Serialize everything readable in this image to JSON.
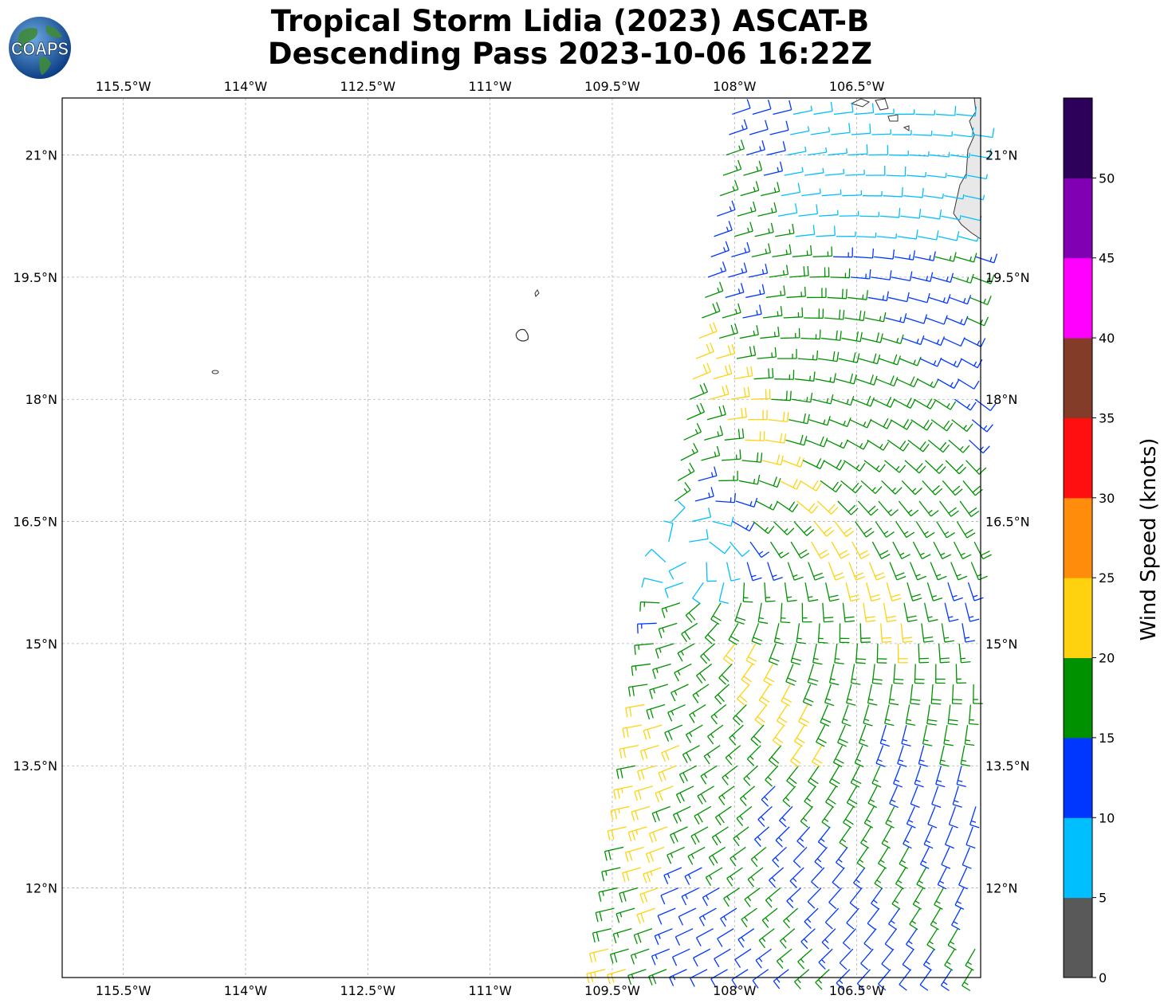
{
  "title": {
    "line1": "Tropical Storm Lidia (2023) ASCAT-B",
    "line2": "Descending Pass 2023-10-06 16:22Z"
  },
  "logo": {
    "text": "COAPS"
  },
  "map": {
    "lon_range": [
      -116.25,
      -104.98
    ],
    "lat_range": [
      10.9,
      21.7
    ],
    "lon_ticks": [
      {
        "value": -115.5,
        "label": "115.5°W"
      },
      {
        "value": -114.0,
        "label": "114°W"
      },
      {
        "value": -112.5,
        "label": "112.5°W"
      },
      {
        "value": -111.0,
        "label": "111°W"
      },
      {
        "value": -109.5,
        "label": "109.5°W"
      },
      {
        "value": -108.0,
        "label": "108°W"
      },
      {
        "value": -106.5,
        "label": "106.5°W"
      }
    ],
    "lat_ticks": [
      {
        "value": 21.0,
        "label": "21°N"
      },
      {
        "value": 19.5,
        "label": "19.5°N"
      },
      {
        "value": 18.0,
        "label": "18°N"
      },
      {
        "value": 16.5,
        "label": "16.5°N"
      },
      {
        "value": 15.0,
        "label": "15°N"
      },
      {
        "value": 13.5,
        "label": "13.5°N"
      },
      {
        "value": 12.0,
        "label": "12°N"
      }
    ],
    "gridlines": true,
    "land_color": "#e8e8e8",
    "coast_color": "#333333",
    "storm_center": {
      "lon": -108.6,
      "lat": 16.1
    },
    "swath": {
      "lat_min": 10.9,
      "lat_max": 21.7,
      "west_edge_lon_at_lat_min": -109.6,
      "west_edge_lon_at_lat_max": -108.0
    }
  },
  "colorbar": {
    "label": "Wind Speed (knots)",
    "ticks": [
      "0",
      "5",
      "10",
      "15",
      "20",
      "25",
      "30",
      "35",
      "40",
      "45",
      "50"
    ],
    "colors": [
      "#595959",
      "#00bfff",
      "#0037ff",
      "#009100",
      "#ffd20f",
      "#ff8c0a",
      "#ff0f0f",
      "#823c28",
      "#ff00ff",
      "#8200b4",
      "#2d005a"
    ]
  }
}
